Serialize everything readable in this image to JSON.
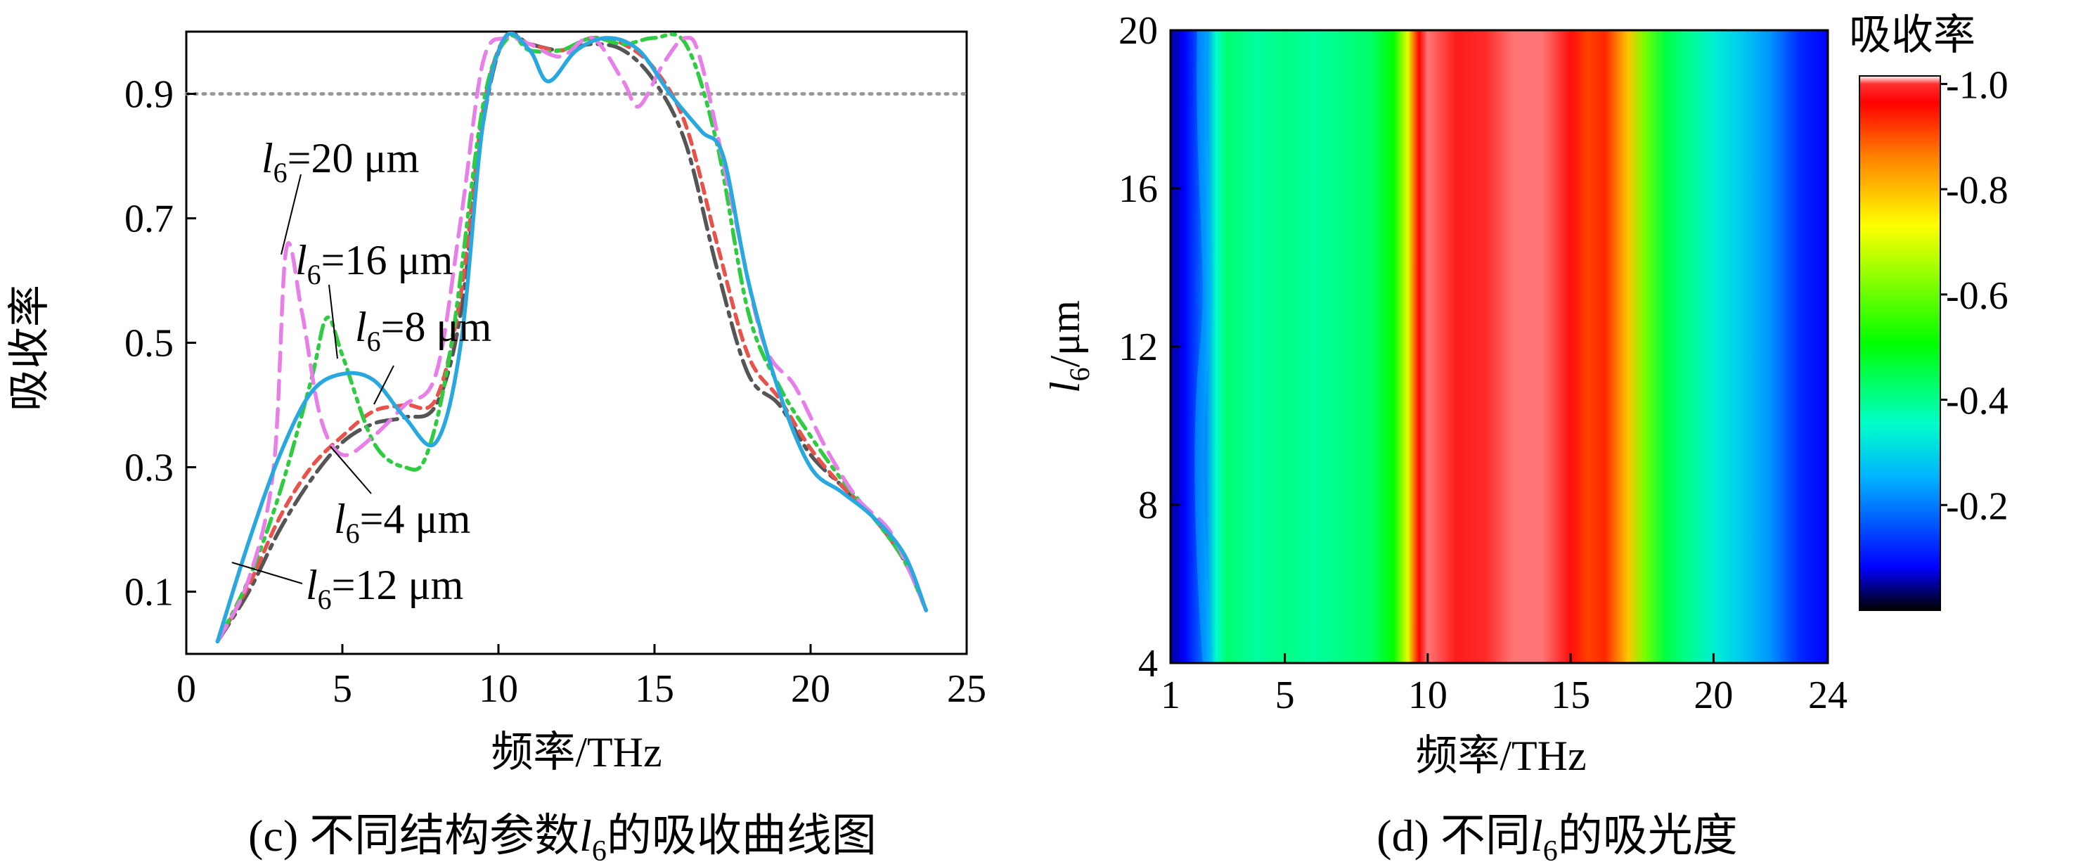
{
  "chart_data": [
    {
      "type": "line",
      "caption": "(c) 不同结构参数",
      "caption_var": "l",
      "caption_sub": "6",
      "caption_tail": "的吸收曲线图",
      "xlabel": "频率/THz",
      "ylabel": "吸收率",
      "xlim": [
        0,
        25
      ],
      "ylim": [
        0,
        1.0
      ],
      "xticks": [
        0,
        5,
        10,
        15,
        20,
        25
      ],
      "yticks": [
        0.1,
        0.3,
        0.5,
        0.7,
        0.9
      ],
      "reference_line": {
        "y": 0.9,
        "style": "dotted",
        "color": "#999999"
      },
      "series": [
        {
          "name": "l6=4 μm",
          "label_var": "l",
          "label_sub": "6",
          "label_val": "=4 μm",
          "color": "#555555",
          "dash": "long-dash-dot",
          "points": [
            [
              1,
              0.02
            ],
            [
              2,
              0.1
            ],
            [
              3,
              0.2
            ],
            [
              4,
              0.28
            ],
            [
              5,
              0.34
            ],
            [
              6,
              0.37
            ],
            [
              7,
              0.38
            ],
            [
              8,
              0.4
            ],
            [
              8.8,
              0.55
            ],
            [
              9.5,
              0.85
            ],
            [
              10.2,
              0.99
            ],
            [
              11,
              0.98
            ],
            [
              12,
              0.97
            ],
            [
              13,
              0.98
            ],
            [
              14,
              0.97
            ],
            [
              15,
              0.92
            ],
            [
              16,
              0.82
            ],
            [
              17,
              0.62
            ],
            [
              18,
              0.45
            ],
            [
              19,
              0.4
            ],
            [
              20,
              0.32
            ],
            [
              21,
              0.27
            ],
            [
              22,
              0.22
            ],
            [
              23,
              0.15
            ],
            [
              23.7,
              0.07
            ]
          ]
        },
        {
          "name": "l6=8 μm",
          "label_var": "l",
          "label_sub": "6",
          "label_val": "=8 μm",
          "color": "#e8524a",
          "dash": "short-dash",
          "points": [
            [
              1,
              0.02
            ],
            [
              2,
              0.11
            ],
            [
              3,
              0.22
            ],
            [
              4,
              0.3
            ],
            [
              5,
              0.35
            ],
            [
              6,
              0.39
            ],
            [
              7,
              0.4
            ],
            [
              8,
              0.41
            ],
            [
              8.8,
              0.58
            ],
            [
              9.5,
              0.87
            ],
            [
              10.2,
              0.99
            ],
            [
              11,
              0.98
            ],
            [
              12,
              0.97
            ],
            [
              13,
              0.99
            ],
            [
              14,
              0.98
            ],
            [
              15,
              0.94
            ],
            [
              16,
              0.85
            ],
            [
              17,
              0.66
            ],
            [
              18,
              0.48
            ],
            [
              19,
              0.41
            ],
            [
              20,
              0.33
            ],
            [
              21,
              0.27
            ],
            [
              22,
              0.22
            ],
            [
              23,
              0.15
            ],
            [
              23.7,
              0.07
            ]
          ]
        },
        {
          "name": "l6=12 μm",
          "label_var": "l",
          "label_sub": "6",
          "label_val": "=12 μm",
          "color": "#29a8e0",
          "dash": "solid",
          "points": [
            [
              1,
              0.02
            ],
            [
              2,
              0.18
            ],
            [
              3,
              0.32
            ],
            [
              4,
              0.42
            ],
            [
              5,
              0.45
            ],
            [
              6,
              0.44
            ],
            [
              7,
              0.38
            ],
            [
              8,
              0.34
            ],
            [
              8.8,
              0.5
            ],
            [
              9.5,
              0.85
            ],
            [
              10.2,
              0.99
            ],
            [
              11,
              0.97
            ],
            [
              11.6,
              0.92
            ],
            [
              12.5,
              0.97
            ],
            [
              13.5,
              0.99
            ],
            [
              14.5,
              0.97
            ],
            [
              15.5,
              0.9
            ],
            [
              16.5,
              0.84
            ],
            [
              17.2,
              0.8
            ],
            [
              18,
              0.6
            ],
            [
              19,
              0.42
            ],
            [
              20,
              0.3
            ],
            [
              21,
              0.26
            ],
            [
              22,
              0.22
            ],
            [
              23,
              0.16
            ],
            [
              23.7,
              0.07
            ]
          ]
        },
        {
          "name": "l6=16 μm",
          "label_var": "l",
          "label_sub": "6",
          "label_val": "=16 μm",
          "color": "#2ecc40",
          "dash": "dash-dot-dot",
          "points": [
            [
              1,
              0.02
            ],
            [
              2,
              0.12
            ],
            [
              3,
              0.26
            ],
            [
              4,
              0.44
            ],
            [
              4.5,
              0.54
            ],
            [
              5,
              0.48
            ],
            [
              6,
              0.34
            ],
            [
              7,
              0.3
            ],
            [
              7.7,
              0.32
            ],
            [
              8.5,
              0.5
            ],
            [
              9.5,
              0.88
            ],
            [
              10.3,
              0.99
            ],
            [
              11,
              0.97
            ],
            [
              12,
              0.97
            ],
            [
              13,
              0.99
            ],
            [
              14,
              0.98
            ],
            [
              15,
              0.99
            ],
            [
              16,
              0.98
            ],
            [
              17,
              0.82
            ],
            [
              18,
              0.55
            ],
            [
              19,
              0.43
            ],
            [
              20,
              0.35
            ],
            [
              21,
              0.28
            ],
            [
              22,
              0.22
            ],
            [
              23,
              0.15
            ],
            [
              23.7,
              0.07
            ]
          ]
        },
        {
          "name": "l6=20 μm",
          "label_var": "l",
          "label_sub": "6",
          "label_val": "=20 μm",
          "color": "#e87ee8",
          "dash": "long-dash",
          "points": [
            [
              1,
              0.02
            ],
            [
              2,
              0.12
            ],
            [
              2.8,
              0.3
            ],
            [
              3.2,
              0.65
            ],
            [
              3.7,
              0.55
            ],
            [
              4.3,
              0.38
            ],
            [
              5,
              0.32
            ],
            [
              6,
              0.35
            ],
            [
              7,
              0.4
            ],
            [
              8,
              0.45
            ],
            [
              8.8,
              0.7
            ],
            [
              9.5,
              0.95
            ],
            [
              10.2,
              0.99
            ],
            [
              11,
              0.98
            ],
            [
              12,
              0.96
            ],
            [
              13,
              0.99
            ],
            [
              14,
              0.92
            ],
            [
              14.5,
              0.88
            ],
            [
              15.3,
              0.95
            ],
            [
              16,
              0.99
            ],
            [
              16.5,
              0.95
            ],
            [
              17.5,
              0.72
            ],
            [
              18.5,
              0.5
            ],
            [
              19.5,
              0.43
            ],
            [
              20.5,
              0.33
            ],
            [
              21.5,
              0.25
            ],
            [
              22.5,
              0.2
            ],
            [
              23.2,
              0.13
            ],
            [
              23.7,
              0.07
            ]
          ]
        }
      ]
    },
    {
      "type": "heatmap",
      "caption": "(d) 不同",
      "caption_var": "l",
      "caption_sub": "6",
      "caption_tail": "的吸光度",
      "xlabel": "频率/THz",
      "ylabel_var": "l",
      "ylabel_sub": "6",
      "ylabel_tail": "/μm",
      "xlim": [
        1,
        24
      ],
      "ylim": [
        4,
        20
      ],
      "xticks": [
        1,
        5,
        10,
        15,
        20,
        24
      ],
      "yticks": [
        4,
        8,
        12,
        16,
        20
      ],
      "colorbar_title": "吸收率",
      "colorbar_ticks": [
        "1.0",
        "0.8",
        "0.6",
        "0.4",
        "0.2"
      ],
      "colorbar_tick_values": [
        1.0,
        0.8,
        0.6,
        0.4,
        0.2
      ],
      "colormap": [
        "#000000",
        "#0000ff",
        "#00b4ff",
        "#00ffc8",
        "#00ff00",
        "#ffff00",
        "#ff8000",
        "#ff0000",
        "#ff3030",
        "#ffffff"
      ],
      "absorption_profile": [
        [
          1,
          0.05
        ],
        [
          1.5,
          0.08
        ],
        [
          2.2,
          0.2
        ],
        [
          2.6,
          0.35
        ],
        [
          3,
          0.42
        ],
        [
          4,
          0.38
        ],
        [
          5,
          0.4
        ],
        [
          6,
          0.38
        ],
        [
          7,
          0.4
        ],
        [
          8,
          0.42
        ],
        [
          8.8,
          0.5
        ],
        [
          9.3,
          0.7
        ],
        [
          9.7,
          0.95
        ],
        [
          10,
          0.99
        ],
        [
          11,
          0.97
        ],
        [
          12,
          0.98
        ],
        [
          13,
          0.99
        ],
        [
          14,
          0.99
        ],
        [
          15,
          0.96
        ],
        [
          15.6,
          0.9
        ],
        [
          16.2,
          0.92
        ],
        [
          17,
          0.78
        ],
        [
          17.6,
          0.6
        ],
        [
          18.3,
          0.45
        ],
        [
          19,
          0.4
        ],
        [
          20,
          0.33
        ],
        [
          21,
          0.28
        ],
        [
          22,
          0.22
        ],
        [
          23,
          0.12
        ],
        [
          24,
          0.08
        ]
      ]
    }
  ]
}
